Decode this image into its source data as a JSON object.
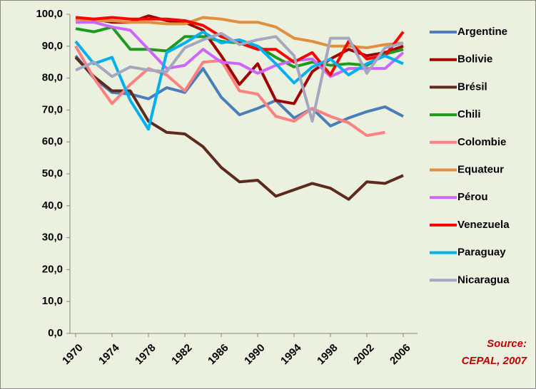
{
  "chart_data": {
    "type": "line",
    "x": [
      1970,
      1972,
      1974,
      1976,
      1978,
      1980,
      1982,
      1984,
      1986,
      1988,
      1990,
      1992,
      1994,
      1996,
      1998,
      2000,
      2002,
      2004,
      2006
    ],
    "xlim": [
      1970,
      2006
    ],
    "xticks": [
      1970,
      1974,
      1978,
      1982,
      1986,
      1990,
      1994,
      1998,
      2002,
      2006
    ],
    "ylim": [
      0,
      100
    ],
    "yticks": [
      {
        "value": 0,
        "label": "0,0"
      },
      {
        "value": 10,
        "label": "10,0"
      },
      {
        "value": 20,
        "label": "20,0"
      },
      {
        "value": 30,
        "label": "30,0"
      },
      {
        "value": 40,
        "label": "40,0"
      },
      {
        "value": 50,
        "label": "50,0"
      },
      {
        "value": 60,
        "label": "60,0"
      },
      {
        "value": 70,
        "label": "70,0"
      },
      {
        "value": 80,
        "label": "80,0"
      },
      {
        "value": 90,
        "label": "90,0"
      },
      {
        "value": 100,
        "label": "100,0"
      }
    ],
    "grid": false,
    "legend": "right",
    "annotation": [
      "Source:",
      "CEPAL, 2007"
    ],
    "series": [
      {
        "name": "Argentine",
        "color": "#4a7ebb",
        "values": [
          87,
          80,
          75.5,
          75,
          73.5,
          77,
          75.5,
          83,
          74,
          68.5,
          70.5,
          73,
          67.5,
          70.5,
          65,
          67.5,
          69.5,
          71,
          68
        ]
      },
      {
        "name": "Bolivie",
        "color": "#a00000",
        "values": [
          98.5,
          98.5,
          97.5,
          97.5,
          99.5,
          98,
          97.5,
          95,
          87,
          78,
          84.5,
          73,
          72,
          82,
          86,
          89,
          87,
          88,
          90
        ]
      },
      {
        "name": "Brésil",
        "color": "#5c2a1e",
        "values": [
          86.5,
          80.5,
          76,
          76,
          66.5,
          63,
          62.5,
          58.5,
          52,
          47.5,
          48,
          43,
          45,
          47,
          45.5,
          42,
          47.5,
          47,
          49.5
        ]
      },
      {
        "name": "Chili",
        "color": "#1e9a1e",
        "values": [
          95.5,
          94.5,
          96,
          89,
          89,
          88.5,
          93,
          93,
          91.5,
          91,
          90,
          86.5,
          83.5,
          85,
          84,
          84.5,
          84,
          87.5,
          89
        ]
      },
      {
        "name": "Colombie",
        "color": "#ff8080",
        "values": [
          90,
          80,
          72,
          78,
          83,
          81,
          76,
          85,
          85.5,
          76,
          75,
          68,
          66.5,
          70.5,
          68,
          66,
          62,
          63,
          null
        ]
      },
      {
        "name": "Equateur",
        "color": "#e0903c",
        "values": [
          98.5,
          98,
          98,
          97.5,
          97.5,
          97,
          97,
          99,
          98.5,
          97.5,
          97.5,
          96,
          92.5,
          91.5,
          90,
          90,
          89.5,
          90.5,
          91
        ]
      },
      {
        "name": "Pérou",
        "color": "#cc66ff",
        "values": [
          97.5,
          97.5,
          96,
          95,
          89,
          83,
          84,
          89,
          85,
          84.5,
          81.5,
          84,
          85.5,
          86,
          80.5,
          83,
          83,
          83,
          88
        ]
      },
      {
        "name": "Venezuela",
        "color": "#ff0000",
        "values": [
          99,
          98.5,
          99,
          98.5,
          98.5,
          98.5,
          98,
          96.5,
          93,
          91,
          89,
          89,
          85,
          88,
          81,
          91.5,
          86,
          87,
          94.5
        ]
      },
      {
        "name": "Paraguay",
        "color": "#00b0f0",
        "values": [
          91.5,
          84.5,
          86.5,
          73,
          64,
          88,
          91,
          94.5,
          91,
          92,
          90,
          84.5,
          78.5,
          83.5,
          86,
          81,
          84.5,
          87,
          84.5
        ]
      },
      {
        "name": "Nicaragua",
        "color": "#a6a6c0",
        "values": [
          82.5,
          85,
          80.5,
          83.5,
          82.5,
          82,
          89.5,
          92,
          94,
          90.5,
          92,
          93,
          87,
          66.5,
          92.5,
          92.5,
          81.5,
          89.5,
          91
        ]
      }
    ]
  }
}
